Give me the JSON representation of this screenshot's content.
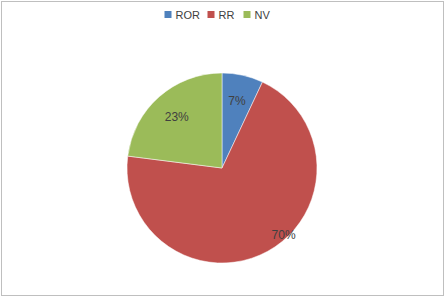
{
  "chart_data": {
    "type": "pie",
    "categories": [
      "ROR",
      "RR",
      "NV"
    ],
    "values": [
      7,
      70,
      23
    ],
    "value_labels": [
      "7%",
      "70%",
      "23%"
    ],
    "colors": [
      "#4f81bd",
      "#c0504d",
      "#9bbb59"
    ],
    "data_labels": true,
    "legend": "top"
  }
}
